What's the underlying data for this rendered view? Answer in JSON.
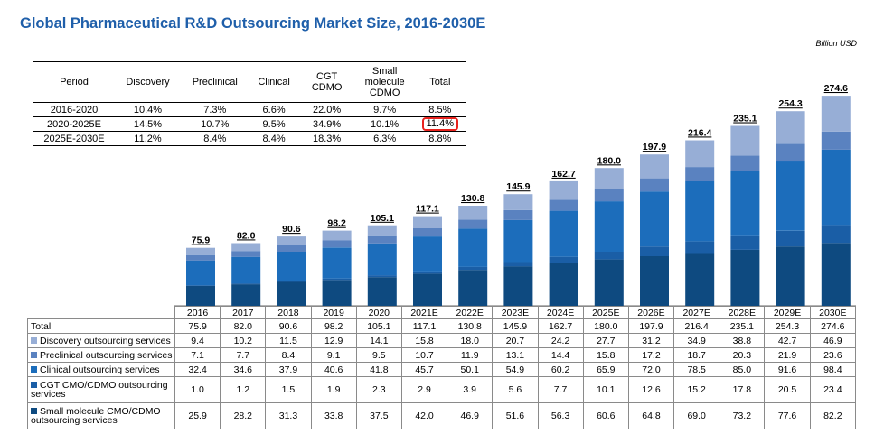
{
  "title": "Global Pharmaceutical R&D Outsourcing Market Size, 2016-2030E",
  "unit": "Billion USD",
  "cagr_table": {
    "headers": [
      "Period",
      "Discovery",
      "Preclinical",
      "Clinical",
      "CGT CDMO",
      "Small molecule CDMO",
      "Total"
    ],
    "rows": [
      [
        "2016-2020",
        "10.4%",
        "7.3%",
        "6.6%",
        "22.0%",
        "9.7%",
        "8.5%"
      ],
      [
        "2020-2025E",
        "14.5%",
        "10.7%",
        "9.5%",
        "34.9%",
        "10.1%",
        "11.4%"
      ],
      [
        "2025E-2030E",
        "11.2%",
        "8.4%",
        "8.4%",
        "18.3%",
        "6.3%",
        "8.8%"
      ]
    ],
    "highlight_color": "#e8231e"
  },
  "chart_data": {
    "type": "bar",
    "stacked": true,
    "title": "Global Pharmaceutical R&D Outsourcing Market Size, 2016-2030E",
    "ylabel": "Billion USD",
    "categories": [
      "2016",
      "2017",
      "2018",
      "2019",
      "2020",
      "2021E",
      "2022E",
      "2023E",
      "2024E",
      "2025E",
      "2026E",
      "2027E",
      "2028E",
      "2029E",
      "2030E"
    ],
    "totals": [
      75.9,
      82.0,
      90.6,
      98.2,
      105.1,
      117.1,
      130.8,
      145.9,
      162.7,
      180.0,
      197.9,
      216.4,
      235.1,
      254.3,
      274.6
    ],
    "totals_label": "Total",
    "series": [
      {
        "name": "Small molecule CMO/CDMO outsourcing services",
        "color": "#0e4a80",
        "values": [
          25.9,
          28.2,
          31.3,
          33.8,
          37.5,
          42.0,
          46.9,
          51.6,
          56.3,
          60.6,
          64.8,
          69.0,
          73.2,
          77.6,
          82.2
        ]
      },
      {
        "name": "CGT CMO/CDMO outsourcing services",
        "color": "#1a5ea6",
        "values": [
          1.0,
          1.2,
          1.5,
          1.9,
          2.3,
          2.9,
          3.9,
          5.6,
          7.7,
          10.1,
          12.6,
          15.2,
          17.8,
          20.5,
          23.4
        ]
      },
      {
        "name": "Clinical outsourcing services",
        "color": "#1c6dbb",
        "values": [
          32.4,
          34.6,
          37.9,
          40.6,
          41.8,
          45.7,
          50.1,
          54.9,
          60.2,
          65.9,
          72.0,
          78.5,
          85.0,
          91.6,
          98.4
        ]
      },
      {
        "name": "Preclinical outsourcing services",
        "color": "#5a82c0",
        "values": [
          7.1,
          7.7,
          8.4,
          9.1,
          9.5,
          10.7,
          11.9,
          13.1,
          14.4,
          15.8,
          17.2,
          18.7,
          20.3,
          21.9,
          23.6
        ]
      },
      {
        "name": "Discovery outsourcing services",
        "color": "#97aed6",
        "values": [
          9.4,
          10.2,
          11.5,
          12.9,
          14.1,
          15.8,
          18.0,
          20.7,
          24.2,
          27.7,
          31.2,
          34.9,
          38.8,
          42.7,
          46.9
        ]
      }
    ]
  }
}
